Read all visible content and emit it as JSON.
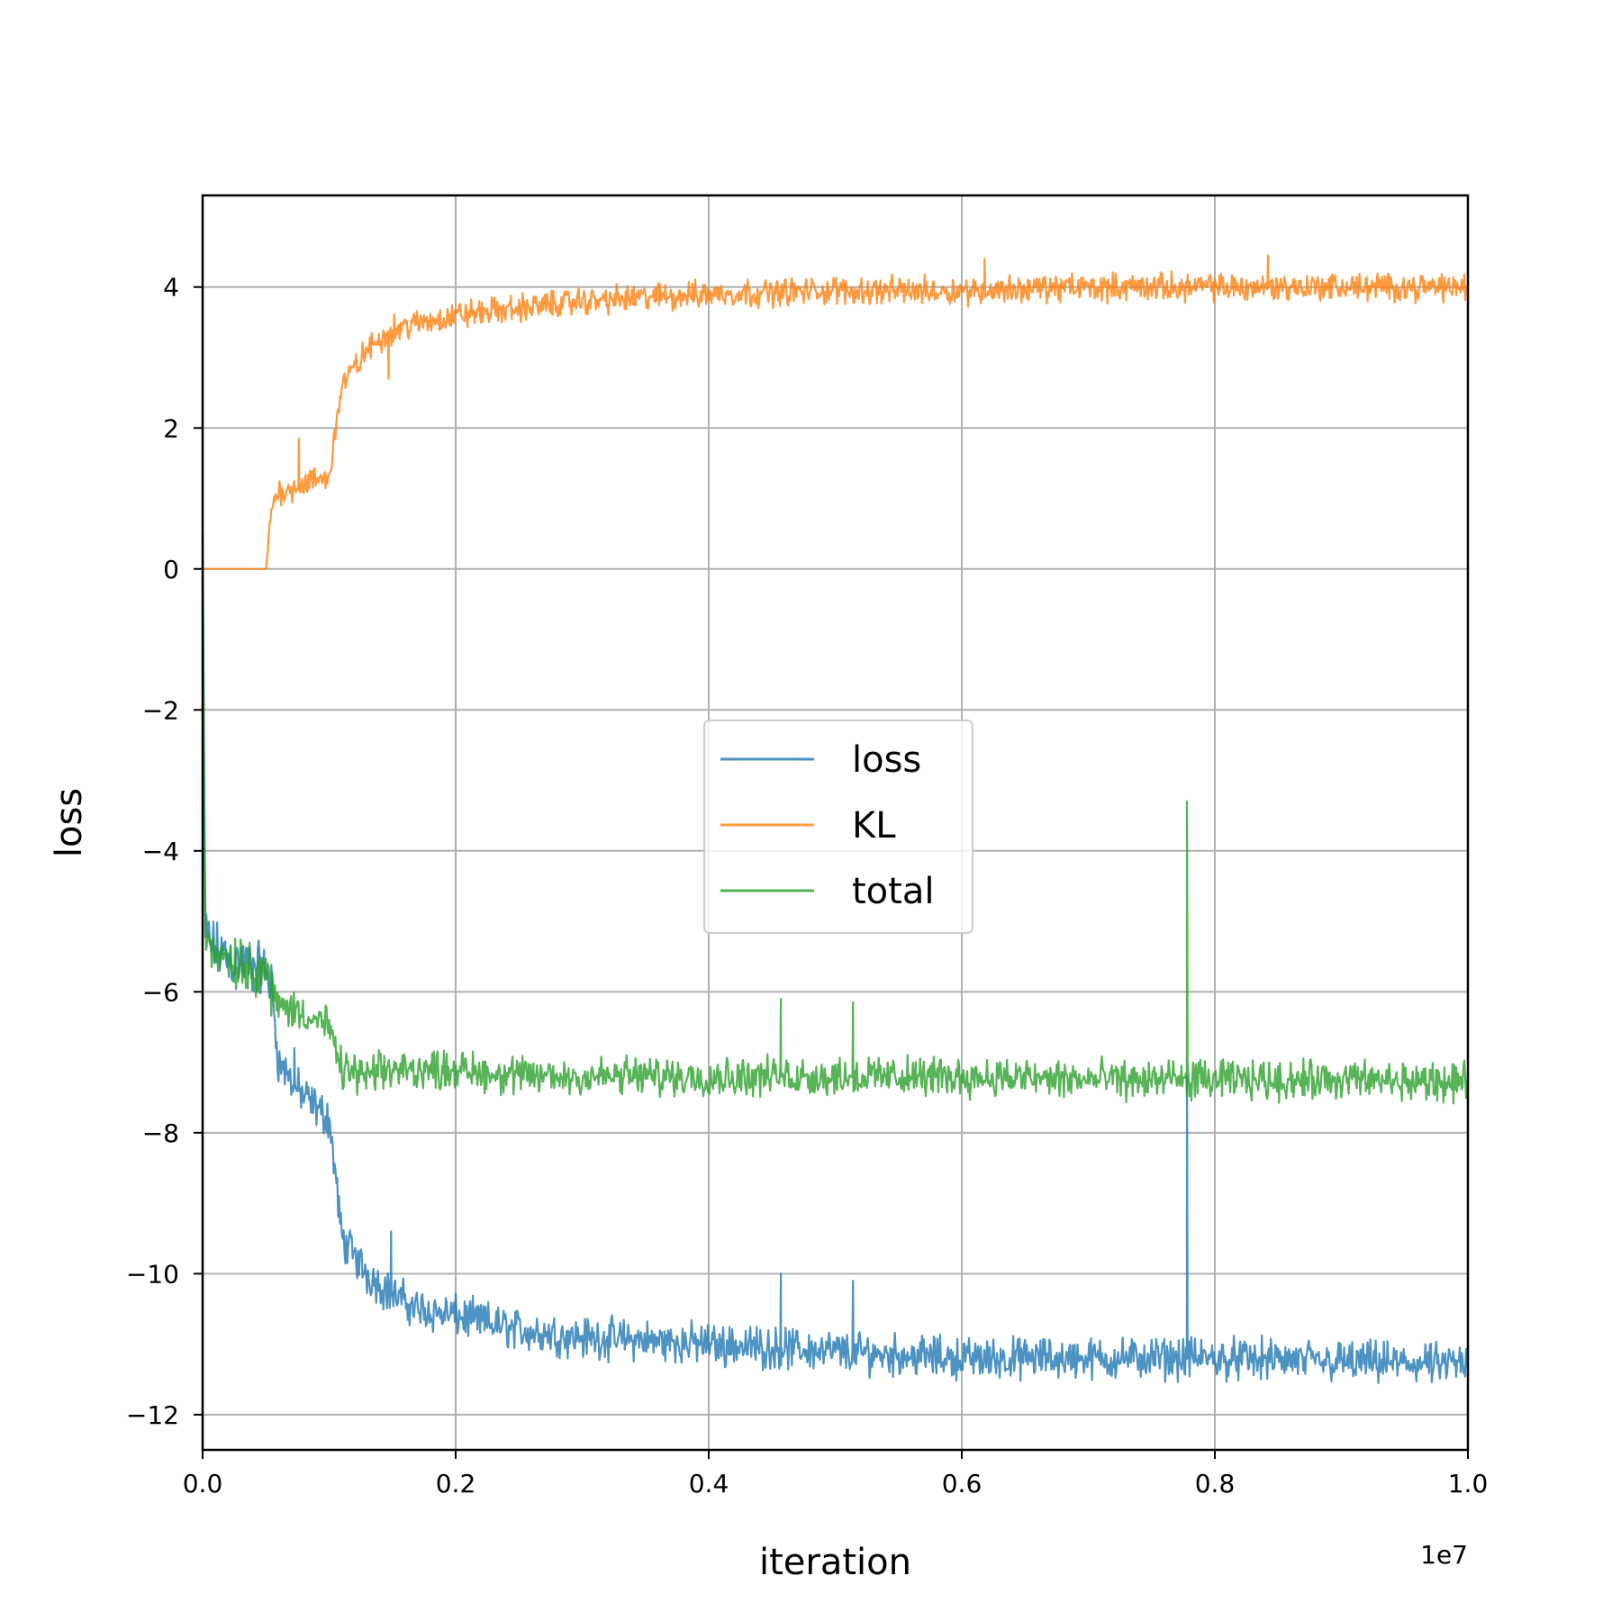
{
  "chart_data": {
    "type": "line",
    "title": "",
    "xlabel": "iteration",
    "ylabel": "loss",
    "x_offset_label": "1e7",
    "xlim": [
      0.0,
      1.0
    ],
    "ylim": [
      -12.5,
      5.3
    ],
    "x_ticks": [
      0.0,
      0.2,
      0.4,
      0.6,
      0.8,
      1.0
    ],
    "x_tick_labels": [
      "0.0",
      "0.2",
      "0.4",
      "0.6",
      "0.8",
      "1.0"
    ],
    "y_ticks": [
      4,
      2,
      0,
      -2,
      -4,
      -6,
      -8,
      -10,
      -12
    ],
    "y_tick_labels": [
      "4",
      "2",
      "0",
      "−2",
      "−4",
      "−6",
      "−8",
      "−10",
      "−12"
    ],
    "grid": true,
    "legend_position": "center",
    "series": [
      {
        "name": "loss",
        "color": "#1f77b4",
        "noise": 0.18,
        "x": [
          0.0,
          0.002,
          0.01,
          0.03,
          0.05,
          0.055,
          0.06,
          0.08,
          0.1,
          0.105,
          0.11,
          0.13,
          0.15,
          0.17,
          0.2,
          0.25,
          0.3,
          0.4,
          0.5,
          0.6,
          0.7,
          0.8,
          0.9,
          1.0
        ],
        "values": [
          0.5,
          -5.2,
          -5.4,
          -5.6,
          -5.7,
          -6.0,
          -7.0,
          -7.5,
          -7.8,
          -8.6,
          -9.5,
          -10.0,
          -10.3,
          -10.5,
          -10.6,
          -10.8,
          -10.9,
          -11.0,
          -11.1,
          -11.2,
          -11.2,
          -11.2,
          -11.25,
          -11.3
        ],
        "spikes": [
          {
            "x": 0.0725,
            "y": -6.8
          },
          {
            "x": 0.149,
            "y": -9.4
          },
          {
            "x": 0.457,
            "y": -10.0
          },
          {
            "x": 0.514,
            "y": -10.1
          },
          {
            "x": 0.778,
            "y": -7.2
          }
        ]
      },
      {
        "name": "KL",
        "color": "#ff7f0e",
        "noise": 0.12,
        "x": [
          0.0,
          0.05,
          0.055,
          0.06,
          0.08,
          0.1,
          0.105,
          0.11,
          0.13,
          0.15,
          0.2,
          0.25,
          0.3,
          0.4,
          0.5,
          0.6,
          0.7,
          0.8,
          0.9,
          1.0
        ],
        "values": [
          0.0,
          0.0,
          0.9,
          1.1,
          1.2,
          1.3,
          2.0,
          2.6,
          3.1,
          3.4,
          3.6,
          3.7,
          3.8,
          3.9,
          3.95,
          3.95,
          4.0,
          4.0,
          4.0,
          4.0
        ],
        "spikes": [
          {
            "x": 0.076,
            "y": 1.85
          },
          {
            "x": 0.147,
            "y": 2.7
          },
          {
            "x": 0.618,
            "y": 4.4
          },
          {
            "x": 0.842,
            "y": 4.45
          }
        ]
      },
      {
        "name": "total",
        "color": "#2ca02c",
        "noise": 0.17,
        "x": [
          0.0,
          0.002,
          0.01,
          0.03,
          0.05,
          0.055,
          0.06,
          0.08,
          0.1,
          0.105,
          0.11,
          0.13,
          0.15,
          0.2,
          0.25,
          0.3,
          0.4,
          0.5,
          0.6,
          0.7,
          0.8,
          0.9,
          1.0
        ],
        "values": [
          0.5,
          -5.2,
          -5.4,
          -5.6,
          -5.7,
          -6.0,
          -6.2,
          -6.3,
          -6.5,
          -6.9,
          -7.1,
          -7.2,
          -7.1,
          -7.1,
          -7.2,
          -7.2,
          -7.2,
          -7.2,
          -7.2,
          -7.25,
          -7.25,
          -7.25,
          -7.3
        ],
        "spikes": [
          {
            "x": 0.457,
            "y": -6.1
          },
          {
            "x": 0.514,
            "y": -6.15
          },
          {
            "x": 0.778,
            "y": -3.3
          }
        ]
      }
    ]
  }
}
